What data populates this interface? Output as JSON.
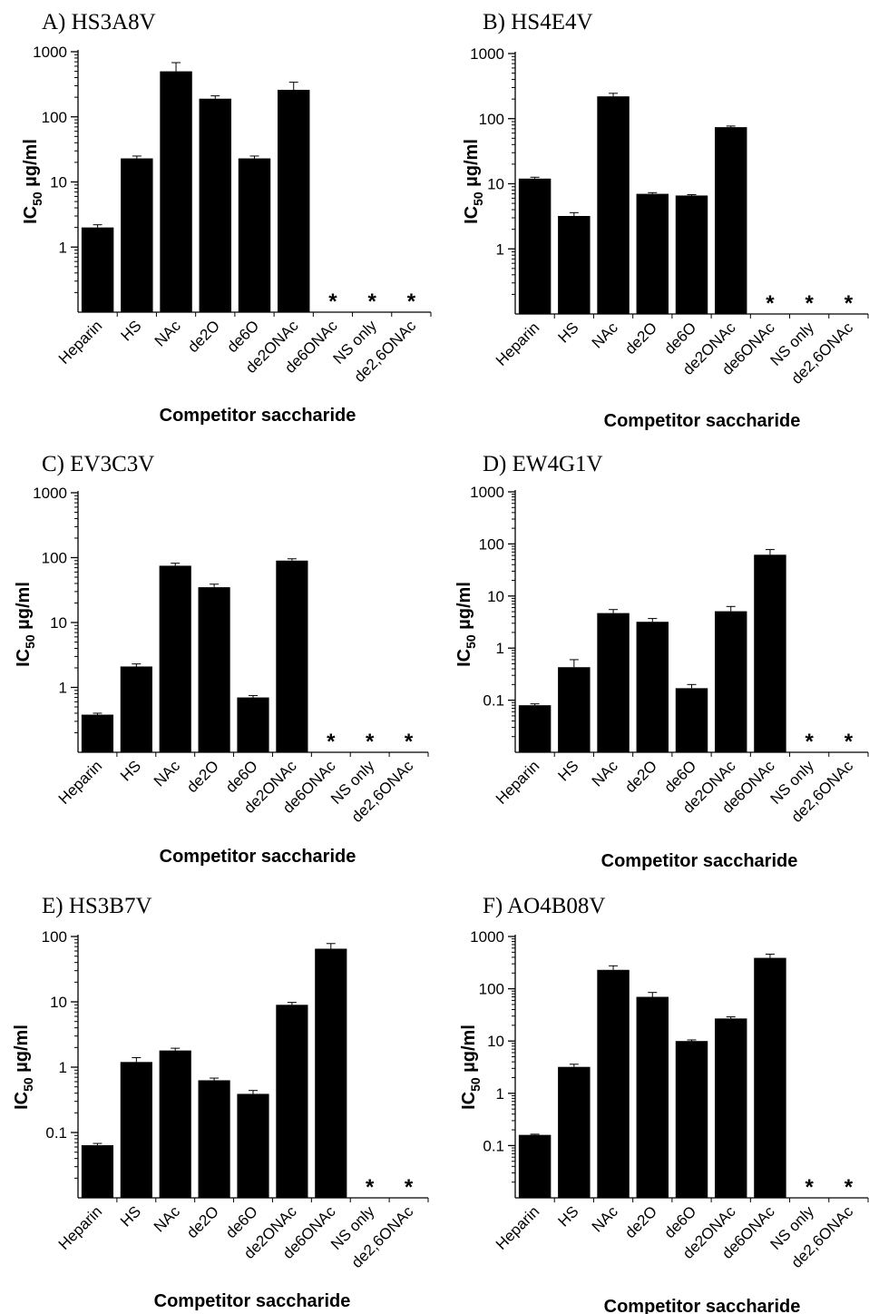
{
  "figure": {
    "y_unit": "µg/ml"
  },
  "chart_data": [
    {
      "type": "bar",
      "title": "A) HS3A8V",
      "xlabel": "Competitor saccharide",
      "ylabel": "IC50 µg/ml",
      "yscale": "log",
      "ylim": [
        0.1,
        1000
      ],
      "yticks": [
        1,
        10,
        100,
        1000
      ],
      "yticklabels": [
        "1",
        "10",
        "100",
        "1000"
      ],
      "categories": [
        "Heparin",
        "HS",
        "NAc",
        "de2O",
        "de6O",
        "de2ONAc",
        "de6ONAc",
        "NS only",
        "de2,6ONAc"
      ],
      "values": [
        2.0,
        23,
        500,
        190,
        23,
        260,
        null,
        null,
        null
      ],
      "error_upper": [
        2.2,
        25,
        680,
        210,
        25,
        340,
        null,
        null,
        null
      ],
      "markers": [
        "",
        "",
        "",
        "",
        "",
        "",
        "*",
        "*",
        "*"
      ]
    },
    {
      "type": "bar",
      "title": "B) HS4E4V",
      "xlabel": "Competitor saccharide",
      "ylabel": "IC50 µg/ml",
      "yscale": "log",
      "ylim": [
        0.1,
        1000
      ],
      "yticks": [
        1,
        10,
        100,
        1000
      ],
      "yticklabels": [
        "1",
        "10",
        "100",
        "1000"
      ],
      "categories": [
        "Heparin",
        "HS",
        "NAc",
        "de2O",
        "de6O",
        "de2ONAc",
        "de6ONAc",
        "NS only",
        "de2,6ONAc"
      ],
      "values": [
        12,
        3.2,
        220,
        7.0,
        6.6,
        74,
        null,
        null,
        null
      ],
      "error_upper": [
        12.6,
        3.6,
        245,
        7.3,
        6.8,
        77,
        null,
        null,
        null
      ],
      "markers": [
        "",
        "",
        "",
        "",
        "",
        "",
        "*",
        "*",
        "*"
      ]
    },
    {
      "type": "bar",
      "title": "C) EV3C3V",
      "xlabel": "Competitor saccharide",
      "ylabel": "IC50 µg/ml",
      "yscale": "log",
      "ylim": [
        0.1,
        1000
      ],
      "yticks": [
        1,
        10,
        100,
        1000
      ],
      "yticklabels": [
        "1",
        "10",
        "100",
        "1000"
      ],
      "categories": [
        "Heparin",
        "HS",
        "NAc",
        "de2O",
        "de6O",
        "de2ONAc",
        "de6ONAc",
        "NS only",
        "de2,6ONAc"
      ],
      "values": [
        0.38,
        2.1,
        75,
        35,
        0.7,
        90,
        null,
        null,
        null
      ],
      "error_upper": [
        0.4,
        2.3,
        82,
        39,
        0.75,
        96,
        null,
        null,
        null
      ],
      "markers": [
        "",
        "",
        "",
        "",
        "",
        "",
        "*",
        "*",
        "*"
      ]
    },
    {
      "type": "bar",
      "title": "D) EW4G1V",
      "xlabel": "Competitor saccharide",
      "ylabel": "IC50 µg/ml",
      "yscale": "log",
      "ylim": [
        0.01,
        1000
      ],
      "yticks": [
        0.1,
        1,
        10,
        100,
        1000
      ],
      "yticklabels": [
        "0.1",
        "1",
        "10",
        "100",
        "1000"
      ],
      "categories": [
        "Heparin",
        "HS",
        "NAc",
        "de2O",
        "de6O",
        "de2ONAc",
        "de6ONAc",
        "NS only",
        "de2,6ONAc"
      ],
      "values": [
        0.08,
        0.43,
        4.7,
        3.2,
        0.17,
        5.1,
        62,
        null,
        null
      ],
      "error_upper": [
        0.085,
        0.6,
        5.5,
        3.7,
        0.2,
        6.3,
        78,
        null,
        null
      ],
      "markers": [
        "",
        "",
        "",
        "",
        "",
        "",
        "",
        "*",
        "*"
      ]
    },
    {
      "type": "bar",
      "title": "E) HS3B7V",
      "xlabel": "Competitor saccharide",
      "ylabel": "IC50 µg/ml",
      "yscale": "log",
      "ylim": [
        0.01,
        100
      ],
      "yticks": [
        0.1,
        1,
        10,
        100
      ],
      "yticklabels": [
        "0.1",
        "1",
        "10",
        "100"
      ],
      "categories": [
        "Heparin",
        "HS",
        "NAc",
        "de2O",
        "de6O",
        "de2ONAc",
        "de6ONAc",
        "NS only",
        "de2,6ONAc"
      ],
      "values": [
        0.064,
        1.2,
        1.8,
        0.63,
        0.39,
        9.0,
        65,
        null,
        null
      ],
      "error_upper": [
        0.068,
        1.4,
        1.95,
        0.68,
        0.44,
        9.8,
        78,
        null,
        null
      ],
      "markers": [
        "",
        "",
        "",
        "",
        "",
        "",
        "",
        "*",
        "*"
      ]
    },
    {
      "type": "bar",
      "title": "F) AO4B08V",
      "xlabel": "Competitor saccharide",
      "ylabel": "IC50 µg/ml",
      "yscale": "log",
      "ylim": [
        0.01,
        1000
      ],
      "yticks": [
        0.1,
        1,
        10,
        100,
        1000
      ],
      "yticklabels": [
        "0.1",
        "1",
        "10",
        "100",
        "1000"
      ],
      "categories": [
        "Heparin",
        "HS",
        "NAc",
        "de2O",
        "de6O",
        "de2ONAc",
        "de6ONAc",
        "NS only",
        "de2,6ONAc"
      ],
      "values": [
        0.16,
        3.2,
        230,
        70,
        10,
        27,
        390,
        null,
        null
      ],
      "error_upper": [
        0.165,
        3.6,
        275,
        85,
        10.5,
        29,
        460,
        null,
        null
      ],
      "markers": [
        "",
        "",
        "",
        "",
        "",
        "",
        "",
        "*",
        "*"
      ]
    }
  ]
}
